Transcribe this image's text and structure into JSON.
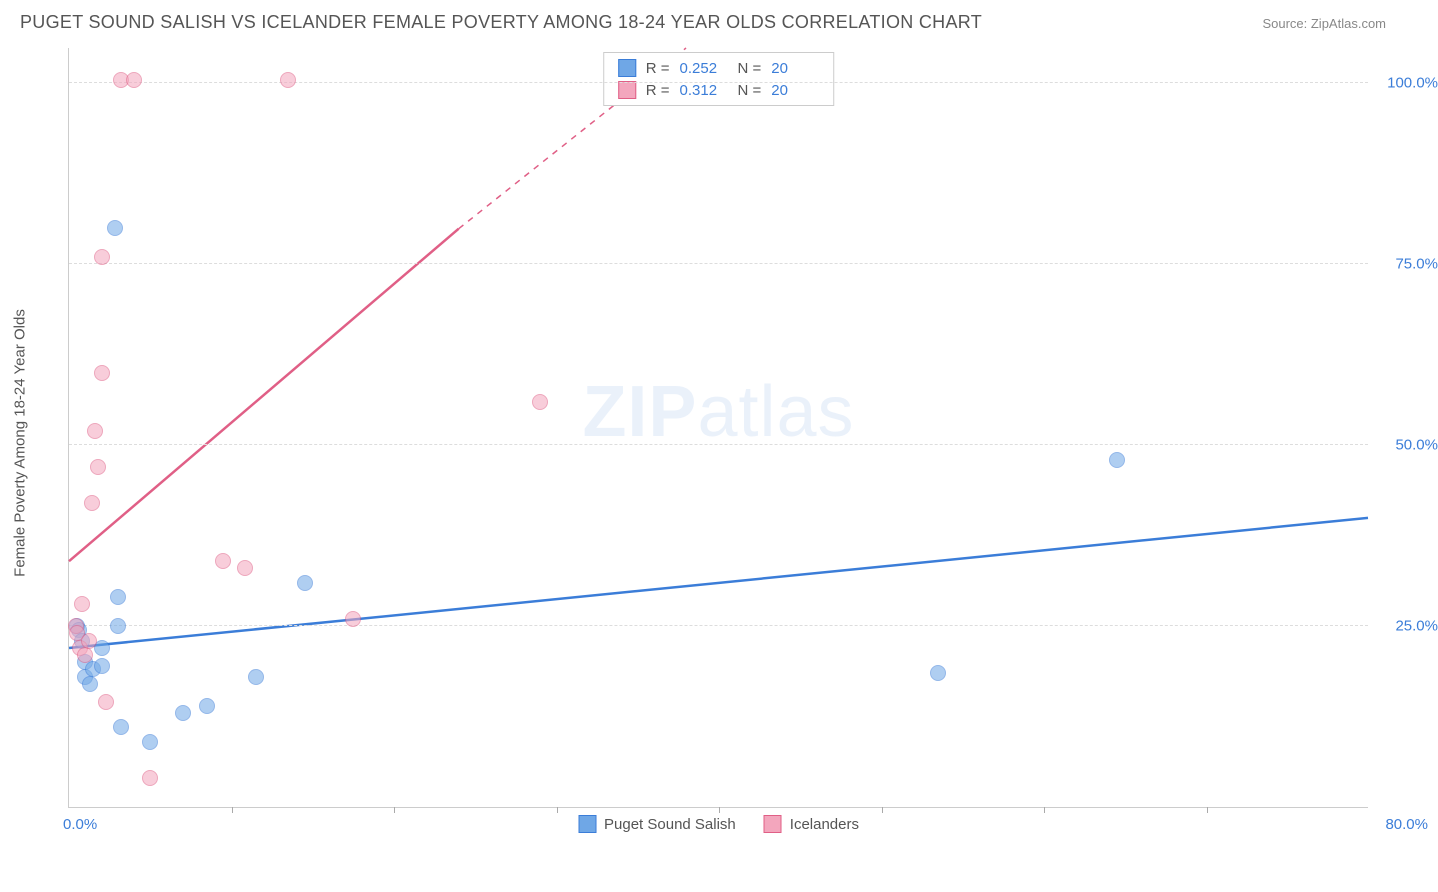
{
  "header": {
    "title": "PUGET SOUND SALISH VS ICELANDER FEMALE POVERTY AMONG 18-24 YEAR OLDS CORRELATION CHART",
    "source": "Source: ZipAtlas.com"
  },
  "y_axis": {
    "label": "Female Poverty Among 18-24 Year Olds"
  },
  "watermark": {
    "zip": "ZIP",
    "atlas": "atlas"
  },
  "chart": {
    "type": "scatter",
    "xlim": [
      0,
      80
    ],
    "ylim": [
      0,
      105
    ],
    "x_ticks_labeled": {
      "min": "0.0%",
      "max": "80.0%"
    },
    "x_tick_positions": [
      0,
      10,
      20,
      30,
      40,
      50,
      60,
      70,
      80
    ],
    "y_ticks": [
      {
        "v": 25,
        "label": "25.0%"
      },
      {
        "v": 50,
        "label": "50.0%"
      },
      {
        "v": 75,
        "label": "75.0%"
      },
      {
        "v": 100,
        "label": "100.0%"
      }
    ],
    "grid_color": "#dddddd",
    "background_color": "#ffffff",
    "marker_radius": 8,
    "marker_opacity": 0.55,
    "series": [
      {
        "id": "puget",
        "name": "Puget Sound Salish",
        "color": "#6fa7e6",
        "stroke": "#3b7dd8",
        "trend": {
          "x1": 0,
          "y1": 22,
          "x2": 80,
          "y2": 40,
          "width": 2.5,
          "dash_after_x": 80
        },
        "stats": {
          "r": "0.252",
          "n": "20"
        },
        "points": [
          {
            "x": 0.5,
            "y": 25
          },
          {
            "x": 0.6,
            "y": 24.5
          },
          {
            "x": 0.8,
            "y": 23
          },
          {
            "x": 1.0,
            "y": 18
          },
          {
            "x": 1.0,
            "y": 20
          },
          {
            "x": 1.3,
            "y": 17
          },
          {
            "x": 1.5,
            "y": 19
          },
          {
            "x": 2.0,
            "y": 22
          },
          {
            "x": 2.0,
            "y": 19.5
          },
          {
            "x": 2.8,
            "y": 80
          },
          {
            "x": 3.0,
            "y": 29
          },
          {
            "x": 3.0,
            "y": 25
          },
          {
            "x": 3.2,
            "y": 11
          },
          {
            "x": 5.0,
            "y": 9
          },
          {
            "x": 7.0,
            "y": 13
          },
          {
            "x": 8.5,
            "y": 14
          },
          {
            "x": 11.5,
            "y": 18
          },
          {
            "x": 14.5,
            "y": 31
          },
          {
            "x": 53.5,
            "y": 18.5
          },
          {
            "x": 64.5,
            "y": 48
          }
        ]
      },
      {
        "id": "icelanders",
        "name": "Icelanders",
        "color": "#f3a6bd",
        "stroke": "#e05f86",
        "trend": {
          "x1": 0,
          "y1": 34,
          "x2": 24,
          "y2": 80,
          "width": 2.5,
          "dash_after_x": 24,
          "dash_x2": 38,
          "dash_y2": 105
        },
        "stats": {
          "r": "0.312",
          "n": "20"
        },
        "points": [
          {
            "x": 0.4,
            "y": 25
          },
          {
            "x": 0.5,
            "y": 24
          },
          {
            "x": 0.7,
            "y": 22
          },
          {
            "x": 0.8,
            "y": 28
          },
          {
            "x": 1.0,
            "y": 21
          },
          {
            "x": 1.2,
            "y": 23
          },
          {
            "x": 1.4,
            "y": 42
          },
          {
            "x": 1.6,
            "y": 52
          },
          {
            "x": 1.8,
            "y": 47
          },
          {
            "x": 2.0,
            "y": 60
          },
          {
            "x": 2.0,
            "y": 76
          },
          {
            "x": 2.3,
            "y": 14.5
          },
          {
            "x": 3.2,
            "y": 100.5
          },
          {
            "x": 4.0,
            "y": 100.5
          },
          {
            "x": 5.0,
            "y": 4
          },
          {
            "x": 9.5,
            "y": 34
          },
          {
            "x": 10.8,
            "y": 33
          },
          {
            "x": 13.5,
            "y": 100.5
          },
          {
            "x": 17.5,
            "y": 26
          },
          {
            "x": 29.0,
            "y": 56
          }
        ]
      }
    ]
  },
  "stats_legend": {
    "r_label": "R =",
    "n_label": "N ="
  }
}
